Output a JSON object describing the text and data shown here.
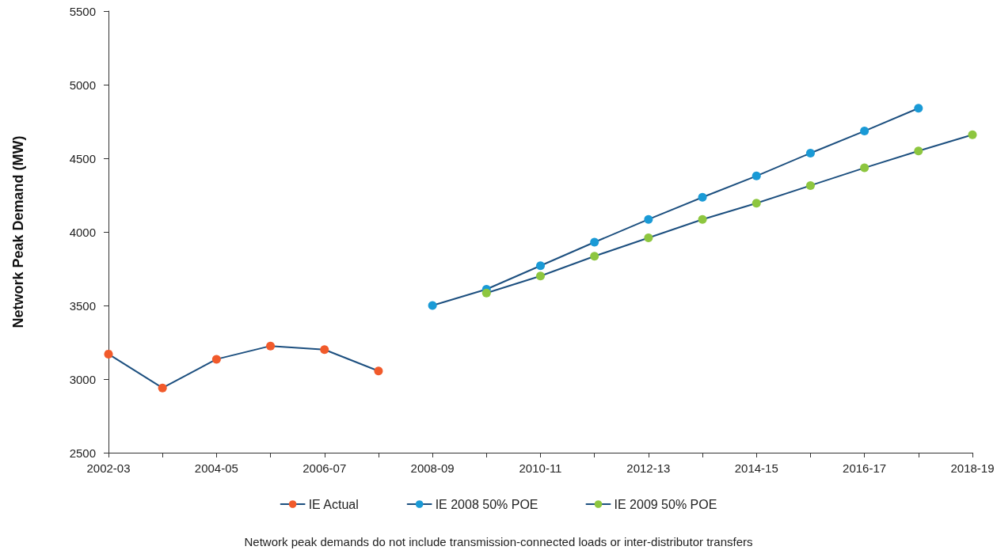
{
  "chart_data": {
    "type": "line",
    "ylabel": "Network Peak Demand (MW)",
    "categories": [
      "2002-03",
      null,
      "2004-05",
      null,
      "2006-07",
      null,
      "2008-09",
      null,
      "2010-11",
      null,
      "2012-13",
      null,
      "2014-15",
      null,
      "2016-17",
      null,
      "2018-19"
    ],
    "series": [
      {
        "name": "IE Actual",
        "color": "#f15a2b",
        "values": [
          3170,
          2940,
          3135,
          3225,
          3200,
          3055,
          null,
          null,
          null,
          null,
          null,
          null,
          null,
          null,
          null,
          null,
          null
        ]
      },
      {
        "name": "IE 2008 50% POE",
        "color": "#1a9ad6",
        "values": [
          null,
          null,
          null,
          null,
          null,
          null,
          3500,
          3610,
          3770,
          3930,
          4085,
          4235,
          4380,
          4535,
          4685,
          4840,
          null
        ]
      },
      {
        "name": "IE 2009 50% POE",
        "color": "#8dc63f",
        "values": [
          null,
          null,
          null,
          null,
          null,
          null,
          null,
          3585,
          3700,
          3835,
          3960,
          4085,
          4195,
          4315,
          4435,
          4550,
          4660
        ]
      }
    ],
    "ylim": [
      2500,
      5500
    ],
    "yticks": [
      2500,
      3000,
      3500,
      4000,
      4500,
      5000,
      5500
    ],
    "grid": false,
    "legend": "bottom",
    "marker": "circle",
    "line_style": "solid",
    "annotations": [
      "Network peak demands do not include transmission-connected loads or inter-distributor transfers"
    ]
  }
}
